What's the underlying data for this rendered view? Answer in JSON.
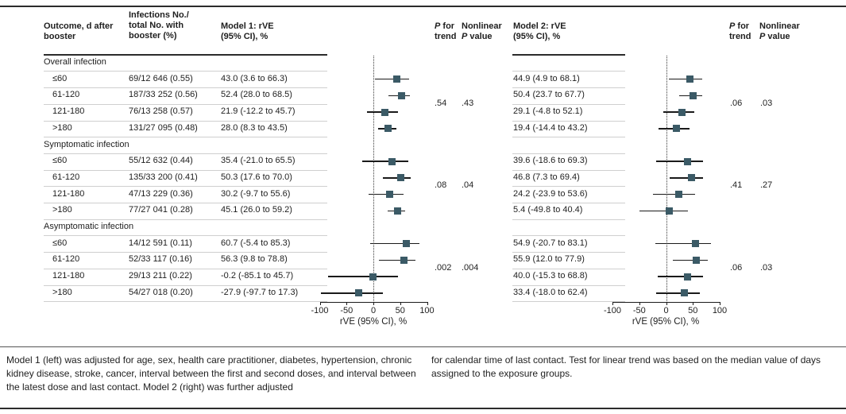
{
  "colors": {
    "marker": "#3b5a66",
    "ci_line": "#1a1a1a",
    "rule_dark": "#2b2b2b",
    "rule_light": "#cfcfcf",
    "text": "#1e1e1e"
  },
  "headers": {
    "outcome": "Outcome, d after\nbooster",
    "infections": "Infections No./\ntotal No. with\nbooster (%)",
    "model1": "Model 1: rVE\n(95% CI), %",
    "model2": "Model 2: rVE\n(95% CI), %",
    "p_trend": "P for\ntrend",
    "nonlinear": "Nonlinear\nP value"
  },
  "chart_data": {
    "type": "forest",
    "x_axis": {
      "label": "rVE (95% CI), %",
      "ticks": [
        -100,
        -50,
        0,
        50,
        100
      ],
      "range": [
        -100,
        100
      ]
    },
    "panels": [
      "Model 1",
      "Model 2"
    ],
    "groups": [
      {
        "label": "Overall infection",
        "rows": [
          {
            "outcome": "≤60",
            "infections": "69/12 646 (0.55)",
            "model1": {
              "label": "43.0 (3.6 to 66.3)",
              "est": 43.0,
              "lo": 3.6,
              "hi": 66.3
            },
            "model2": {
              "label": "44.9 (4.9 to 68.1)",
              "est": 44.9,
              "lo": 4.9,
              "hi": 68.1
            }
          },
          {
            "outcome": "61-120",
            "infections": "187/33 252 (0.56)",
            "model1": {
              "label": "52.4 (28.0 to 68.5)",
              "est": 52.4,
              "lo": 28.0,
              "hi": 68.5
            },
            "model2": {
              "label": "50.4 (23.7 to 67.7)",
              "est": 50.4,
              "lo": 23.7,
              "hi": 67.7
            }
          },
          {
            "outcome": "121-180",
            "infections": "76/13 258 (0.57)",
            "model1": {
              "label": "21.9 (-12.2 to 45.7)",
              "est": 21.9,
              "lo": -12.2,
              "hi": 45.7
            },
            "model2": {
              "label": "29.1 (-4.8 to 52.1)",
              "est": 29.1,
              "lo": -4.8,
              "hi": 52.1
            }
          },
          {
            "outcome": ">180",
            "infections": "131/27 095 (0.48)",
            "model1": {
              "label": "28.0 (8.3 to 43.5)",
              "est": 28.0,
              "lo": 8.3,
              "hi": 43.5
            },
            "model2": {
              "label": "19.4 (-14.4 to 43.2)",
              "est": 19.4,
              "lo": -14.4,
              "hi": 43.2
            }
          }
        ],
        "model1_p": {
          "trend": ".54",
          "nonlinear": ".43"
        },
        "model2_p": {
          "trend": ".06",
          "nonlinear": ".03"
        }
      },
      {
        "label": "Symptomatic infection",
        "rows": [
          {
            "outcome": "≤60",
            "infections": "55/12 632 (0.44)",
            "model1": {
              "label": "35.4 (-21.0 to 65.5)",
              "est": 35.4,
              "lo": -21.0,
              "hi": 65.5
            },
            "model2": {
              "label": "39.6 (-18.6 to 69.3)",
              "est": 39.6,
              "lo": -18.6,
              "hi": 69.3
            }
          },
          {
            "outcome": "61-120",
            "infections": "135/33 200 (0.41)",
            "model1": {
              "label": "50.3 (17.6 to 70.0)",
              "est": 50.3,
              "lo": 17.6,
              "hi": 70.0
            },
            "model2": {
              "label": "46.8 (7.3 to 69.4)",
              "est": 46.8,
              "lo": 7.3,
              "hi": 69.4
            }
          },
          {
            "outcome": "121-180",
            "infections": "47/13 229 (0.36)",
            "model1": {
              "label": "30.2 (-9.7 to 55.6)",
              "est": 30.2,
              "lo": -9.7,
              "hi": 55.6
            },
            "model2": {
              "label": "24.2 (-23.9 to 53.6)",
              "est": 24.2,
              "lo": -23.9,
              "hi": 53.6
            }
          },
          {
            "outcome": ">180",
            "infections": "77/27 041 (0.28)",
            "model1": {
              "label": "45.1 (26.0 to 59.2)",
              "est": 45.1,
              "lo": 26.0,
              "hi": 59.2
            },
            "model2": {
              "label": "5.4 (-49.8 to 40.4)",
              "est": 5.4,
              "lo": -49.8,
              "hi": 40.4
            }
          }
        ],
        "model1_p": {
          "trend": ".08",
          "nonlinear": ".04"
        },
        "model2_p": {
          "trend": ".41",
          "nonlinear": ".27"
        }
      },
      {
        "label": "Asymptomatic infection",
        "rows": [
          {
            "outcome": "≤60",
            "infections": "14/12 591 (0.11)",
            "model1": {
              "label": "60.7 (-5.4 to 85.3)",
              "est": 60.7,
              "lo": -5.4,
              "hi": 85.3
            },
            "model2": {
              "label": "54.9 (-20.7 to 83.1)",
              "est": 54.9,
              "lo": -20.7,
              "hi": 83.1
            }
          },
          {
            "outcome": "61-120",
            "infections": "52/33 117 (0.16)",
            "model1": {
              "label": "56.3 (9.8 to 78.8)",
              "est": 56.3,
              "lo": 9.8,
              "hi": 78.8
            },
            "model2": {
              "label": "55.9 (12.0 to 77.9)",
              "est": 55.9,
              "lo": 12.0,
              "hi": 77.9
            }
          },
          {
            "outcome": "121-180",
            "infections": "29/13 211 (0.22)",
            "model1": {
              "label": "-0.2 (-85.1 to 45.7)",
              "est": -0.2,
              "lo": -85.1,
              "hi": 45.7
            },
            "model2": {
              "label": "40.0 (-15.3 to 68.8)",
              "est": 40.0,
              "lo": -15.3,
              "hi": 68.8
            }
          },
          {
            "outcome": ">180",
            "infections": "54/27 018 (0.20)",
            "model1": {
              "label": "-27.9 (-97.7 to 17.3)",
              "est": -27.9,
              "lo": -97.7,
              "hi": 17.3
            },
            "model2": {
              "label": "33.4 (-18.0 to 62.4)",
              "est": 33.4,
              "lo": -18.0,
              "hi": 62.4
            }
          }
        ],
        "model1_p": {
          "trend": ".002",
          "nonlinear": ".004"
        },
        "model2_p": {
          "trend": ".06",
          "nonlinear": ".03"
        }
      }
    ]
  },
  "footnote": {
    "left": "Model 1 (left) was adjusted for age, sex, health care practitioner, diabetes, hypertension, chronic kidney disease, stroke, cancer, interval between the first and second doses, and interval between the latest dose and last contact. Model 2 (right) was further adjusted",
    "right": "for calendar time of last contact. Test for linear trend was based on the median value of days assigned to the exposure groups."
  }
}
